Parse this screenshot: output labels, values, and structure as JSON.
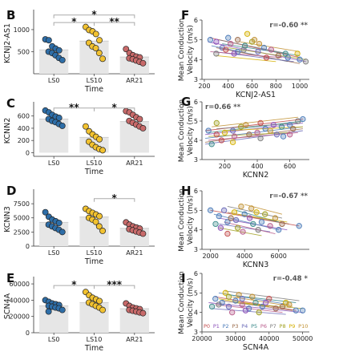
{
  "colors": {
    "LS0": "#2e6ea8",
    "LS10": "#f2c230",
    "AR21": "#c86a6a",
    "bar": "#e6e6e6",
    "participants": [
      "#c24a4a",
      "#8a4fb8",
      "#4a7ab8",
      "#9a6a4a",
      "#6a6ab8",
      "#3a8a8a",
      "#b85a8a",
      "#7a7a7a",
      "#a0a020",
      "#d4b000",
      "#c09030"
    ]
  },
  "chart_data": [
    {
      "panel": "B",
      "type": "bar",
      "ylabel": "KCNJ2-AS1",
      "xlabel": "Time",
      "categories": [
        "LS0",
        "LS10",
        "AR21"
      ],
      "yticks": [
        500,
        1000
      ],
      "ylim": [
        0,
        1380
      ],
      "means": [
        540,
        740,
        380
      ],
      "points": [
        [
          780,
          760,
          620,
          570,
          530,
          500,
          470,
          420,
          360,
          310
        ],
        [
          1060,
          990,
          960,
          900,
          760,
          700,
          620,
          580,
          470,
          340
        ],
        [
          560,
          470,
          420,
          390,
          370,
          350,
          330,
          300,
          270,
          240
        ]
      ],
      "brackets": [
        {
          "from": 0,
          "to": 2,
          "y": 1330,
          "label": "*"
        },
        {
          "from": 0,
          "to": 1,
          "y": 1160,
          "label": "*"
        },
        {
          "from": 1,
          "to": 2,
          "y": 1160,
          "label": "**"
        }
      ]
    },
    {
      "panel": "C",
      "type": "bar",
      "ylabel": "KCNN2",
      "xlabel": "Time",
      "categories": [
        "LS0",
        "LS10",
        "AR21"
      ],
      "yticks": [
        0,
        200,
        400,
        600
      ],
      "ylim": [
        -60,
        780
      ],
      "means": [
        550,
        250,
        510
      ],
      "points": [
        [
          690,
          660,
          620,
          590,
          570,
          550,
          520,
          500,
          470,
          440
        ],
        [
          430,
          350,
          300,
          260,
          220,
          180,
          130,
          90,
          60,
          40
        ],
        [
          680,
          660,
          620,
          580,
          550,
          520,
          490,
          460,
          430,
          400
        ]
      ],
      "brackets": [
        {
          "from": 0,
          "to": 1,
          "y": 730,
          "label": "**"
        },
        {
          "from": 1,
          "to": 2,
          "y": 730,
          "label": "*"
        }
      ]
    },
    {
      "panel": "D",
      "type": "bar",
      "ylabel": "KCNN3",
      "xlabel": "Time",
      "categories": [
        "LS0",
        "LS10",
        "AR21"
      ],
      "yticks": [
        0,
        2500,
        5000,
        7500
      ],
      "ylim": [
        0,
        9500
      ],
      "means": [
        4200,
        5150,
        3150
      ],
      "points": [
        [
          6000,
          5200,
          4700,
          4400,
          4100,
          3800,
          3500,
          3200,
          2900,
          2500
        ],
        [
          6600,
          6200,
          5900,
          5600,
          5300,
          5000,
          4700,
          4300,
          3500,
          2700
        ],
        [
          4200,
          3800,
          3500,
          3300,
          3100,
          3000,
          2800,
          2600,
          2400,
          2200
        ]
      ],
      "brackets": [
        {
          "from": 1,
          "to": 2,
          "y": 8400,
          "label": "*"
        }
      ]
    },
    {
      "panel": "E",
      "type": "bar",
      "ylabel": "SCN4A",
      "xlabel": "Time",
      "categories": [
        "LS0",
        "LS10",
        "AR21"
      ],
      "yticks": [
        0,
        20000,
        40000,
        60000
      ],
      "ylim": [
        0,
        65000
      ],
      "means": [
        33000,
        37000,
        29500
      ],
      "points": [
        [
          40000,
          38000,
          36000,
          35000,
          34000,
          33000,
          32000,
          31000,
          30000,
          28000,
          26000
        ],
        [
          50000,
          46000,
          43000,
          41000,
          39000,
          37000,
          35000,
          33000,
          31000,
          28000
        ],
        [
          36000,
          33000,
          31000,
          30000,
          29000,
          28000,
          27000,
          26000,
          25000,
          24000
        ]
      ],
      "brackets": [
        {
          "from": 0,
          "to": 1,
          "y": 58000,
          "label": "*"
        },
        {
          "from": 1,
          "to": 2,
          "y": 58000,
          "label": "***"
        }
      ]
    },
    {
      "panel": "F",
      "type": "scatter",
      "xlabel": "KCNJ2-AS1",
      "ylabel": "Mean Conduction Velocity (m/s)",
      "xticks": [
        200,
        400,
        600,
        800,
        1000
      ],
      "xlim": [
        180,
        1080
      ],
      "yticks": [
        3,
        4,
        5,
        6
      ],
      "ylim": [
        3,
        6
      ],
      "r": "r=-0.60 **",
      "fits": [
        [
          250,
          5.1,
          1000,
          4.1
        ],
        [
          230,
          4.9,
          1050,
          3.9
        ],
        [
          260,
          4.7,
          900,
          3.9
        ],
        [
          300,
          4.6,
          1000,
          3.8
        ],
        [
          280,
          4.4,
          950,
          3.9
        ],
        [
          350,
          4.8,
          1000,
          4.2
        ],
        [
          250,
          4.4,
          850,
          4.1
        ],
        [
          320,
          5.0,
          900,
          4.3
        ],
        [
          400,
          4.6,
          1050,
          4.0
        ],
        [
          300,
          4.2,
          800,
          3.9
        ],
        [
          500,
          4.9,
          1000,
          4.4
        ]
      ],
      "points": [
        [
          250,
          5.0,
          2
        ],
        [
          300,
          4.9,
          1
        ],
        [
          350,
          4.6,
          4
        ],
        [
          420,
          4.8,
          6
        ],
        [
          480,
          4.4,
          2
        ],
        [
          540,
          4.7,
          5
        ],
        [
          600,
          4.9,
          8
        ],
        [
          650,
          4.4,
          4
        ],
        [
          700,
          4.6,
          2
        ],
        [
          760,
          4.5,
          6
        ],
        [
          820,
          4.2,
          3
        ],
        [
          900,
          4.1,
          2
        ],
        [
          1000,
          4.0,
          2
        ],
        [
          1050,
          3.9,
          7
        ],
        [
          560,
          5.3,
          9
        ],
        [
          620,
          5.0,
          10
        ],
        [
          380,
          4.5,
          0
        ],
        [
          450,
          4.3,
          1
        ],
        [
          720,
          4.1,
          0
        ],
        [
          480,
          5.0,
          3
        ],
        [
          530,
          4.5,
          7
        ],
        [
          400,
          5.1,
          2
        ],
        [
          880,
          4.3,
          5
        ],
        [
          980,
          4.3,
          9
        ],
        [
          660,
          4.8,
          10
        ],
        [
          300,
          4.3,
          7
        ]
      ]
    },
    {
      "panel": "G",
      "type": "scatter",
      "xlabel": "KCNN2",
      "ylabel": "Mean Conduction Velocity (m/s)",
      "xticks": [
        200,
        400,
        600
      ],
      "xlim": [
        60,
        720
      ],
      "yticks": [
        3,
        4,
        5,
        6
      ],
      "ylim": [
        3,
        6
      ],
      "r": "r=0.66 **",
      "fits": [
        [
          80,
          4.5,
          680,
          5.1
        ],
        [
          80,
          4.3,
          680,
          4.9
        ],
        [
          80,
          4.1,
          680,
          4.7
        ],
        [
          80,
          3.9,
          680,
          4.6
        ],
        [
          80,
          3.8,
          680,
          4.5
        ],
        [
          100,
          4.4,
          680,
          5.0
        ],
        [
          100,
          4.0,
          650,
          4.4
        ],
        [
          150,
          4.6,
          650,
          4.9
        ],
        [
          100,
          4.2,
          600,
          4.4
        ],
        [
          200,
          4.5,
          680,
          4.7
        ],
        [
          120,
          4.7,
          650,
          5.2
        ]
      ],
      "points": [
        [
          100,
          4.5,
          2
        ],
        [
          150,
          4.3,
          0
        ],
        [
          200,
          4.4,
          9
        ],
        [
          250,
          4.5,
          4
        ],
        [
          300,
          4.7,
          8
        ],
        [
          350,
          4.3,
          3
        ],
        [
          400,
          4.4,
          6
        ],
        [
          450,
          4.6,
          2
        ],
        [
          500,
          4.8,
          1
        ],
        [
          550,
          4.7,
          5
        ],
        [
          600,
          4.8,
          2
        ],
        [
          650,
          5.0,
          7
        ],
        [
          120,
          3.8,
          5
        ],
        [
          180,
          4.0,
          0
        ],
        [
          260,
          4.2,
          6
        ],
        [
          420,
          4.1,
          7
        ],
        [
          480,
          4.5,
          10
        ],
        [
          560,
          4.2,
          2
        ],
        [
          620,
          4.6,
          3
        ],
        [
          680,
          5.1,
          2
        ],
        [
          330,
          4.8,
          10
        ],
        [
          250,
          3.9,
          9
        ],
        [
          520,
          4.3,
          4
        ],
        [
          420,
          4.9,
          0
        ],
        [
          600,
          4.3,
          6
        ],
        [
          150,
          4.9,
          8
        ]
      ]
    },
    {
      "panel": "H",
      "type": "scatter",
      "xlabel": "KCNN3",
      "ylabel": "Mean Conduction Velocity (m/s)",
      "xticks": [
        2000,
        4000,
        6000
      ],
      "xlim": [
        1500,
        7800
      ],
      "yticks": [
        3,
        4,
        5,
        6
      ],
      "ylim": [
        3,
        6
      ],
      "r": "r=-0.67 **",
      "fits": [
        [
          2000,
          5.0,
          7200,
          4.2
        ],
        [
          2500,
          4.6,
          6500,
          4.0
        ],
        [
          2200,
          4.8,
          6000,
          4.0
        ],
        [
          3000,
          4.9,
          6600,
          4.3
        ],
        [
          2500,
          4.3,
          5500,
          3.9
        ],
        [
          3500,
          5.0,
          6000,
          4.4
        ],
        [
          2800,
          4.4,
          5800,
          3.8
        ],
        [
          3000,
          5.2,
          6200,
          4.6
        ],
        [
          2500,
          4.1,
          5000,
          3.7
        ],
        [
          3600,
          4.8,
          6500,
          4.4
        ],
        [
          4000,
          5.3,
          6200,
          4.8
        ]
      ],
      "points": [
        [
          2000,
          5.0,
          2
        ],
        [
          2500,
          4.7,
          2
        ],
        [
          3000,
          4.4,
          2
        ],
        [
          3500,
          4.5,
          4
        ],
        [
          4000,
          4.8,
          2
        ],
        [
          4500,
          4.3,
          5
        ],
        [
          5000,
          4.4,
          2
        ],
        [
          5500,
          4.2,
          6
        ],
        [
          6000,
          4.0,
          2
        ],
        [
          7200,
          4.2,
          2
        ],
        [
          3400,
          4.9,
          9
        ],
        [
          3800,
          5.2,
          10
        ],
        [
          4400,
          5.1,
          10
        ],
        [
          5800,
          4.6,
          10
        ],
        [
          2600,
          4.1,
          1
        ],
        [
          3000,
          3.8,
          0
        ],
        [
          3900,
          3.9,
          6
        ],
        [
          4800,
          4.0,
          7
        ],
        [
          3200,
          4.6,
          3
        ],
        [
          2300,
          4.3,
          5
        ],
        [
          5200,
          4.8,
          8
        ],
        [
          6200,
          4.3,
          3
        ],
        [
          4300,
          4.6,
          1
        ],
        [
          3600,
          4.1,
          8
        ],
        [
          2800,
          5.0,
          4
        ],
        [
          4700,
          4.9,
          9
        ]
      ]
    },
    {
      "panel": "I",
      "type": "scatter",
      "xlabel": "SCN4A",
      "ylabel": "Mean Conduction Velocity (m/s)",
      "xticks": [
        20000,
        30000,
        40000,
        50000
      ],
      "xlim": [
        20000,
        52000
      ],
      "yticks": [
        3,
        4,
        5,
        6
      ],
      "ylim": [
        3,
        6
      ],
      "r": "r=-0.48 *",
      "fits": [
        [
          24000,
          4.8,
          48000,
          4.1
        ],
        [
          22000,
          4.5,
          50000,
          4.0
        ],
        [
          25000,
          5.0,
          46000,
          4.4
        ],
        [
          26000,
          4.6,
          47000,
          4.1
        ],
        [
          23000,
          4.2,
          45000,
          3.9
        ],
        [
          28000,
          4.9,
          48000,
          4.5
        ],
        [
          24000,
          4.4,
          44000,
          4.0
        ],
        [
          27000,
          5.1,
          49000,
          4.6
        ],
        [
          30000,
          4.5,
          50000,
          4.2
        ],
        [
          25000,
          4.7,
          40000,
          4.3
        ],
        [
          29000,
          4.8,
          47000,
          4.3
        ]
      ],
      "points": [
        [
          24000,
          4.7,
          2
        ],
        [
          26000,
          4.5,
          2
        ],
        [
          28000,
          4.3,
          4
        ],
        [
          30000,
          4.6,
          2
        ],
        [
          32000,
          4.4,
          6
        ],
        [
          34000,
          4.2,
          2
        ],
        [
          36000,
          4.5,
          5
        ],
        [
          38000,
          4.3,
          2
        ],
        [
          42000,
          4.2,
          3
        ],
        [
          48000,
          4.1,
          2
        ],
        [
          50000,
          4.1,
          2
        ],
        [
          27000,
          5.0,
          9
        ],
        [
          31000,
          4.9,
          10
        ],
        [
          35000,
          4.8,
          10
        ],
        [
          40000,
          4.7,
          0
        ],
        [
          33000,
          4.1,
          1
        ],
        [
          29000,
          4.0,
          6
        ],
        [
          25000,
          4.4,
          7
        ],
        [
          37000,
          4.0,
          8
        ],
        [
          44000,
          4.3,
          3
        ],
        [
          23000,
          4.3,
          5
        ],
        [
          45000,
          4.5,
          9
        ],
        [
          39000,
          4.5,
          1
        ],
        [
          32000,
          4.7,
          4
        ],
        [
          46000,
          4.4,
          10
        ],
        [
          28000,
          4.8,
          8
        ]
      ],
      "legend": [
        "P0",
        "P1",
        "P2",
        "P3",
        "P4",
        "P5",
        "P6",
        "P7",
        "P8",
        "P9",
        "P10"
      ]
    }
  ]
}
